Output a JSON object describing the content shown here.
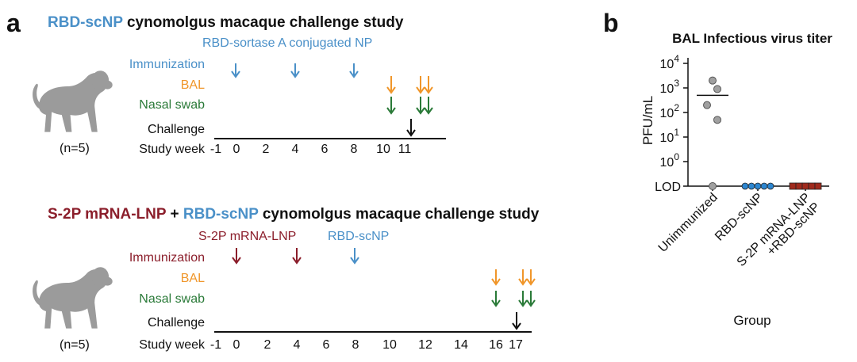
{
  "colors": {
    "blue": "#4a90c8",
    "maroon": "#8b1e2b",
    "orange": "#f0962a",
    "green": "#2a7a38",
    "black": "#111111",
    "monkey": "#9b9b9b",
    "grey_point": "#a0a0a0",
    "blue_point": "#2d86d0",
    "red_point": "#a02a1c"
  },
  "panel_a": {
    "letter": "a",
    "study1": {
      "title_part1": "RBD-scNP",
      "title_part2": " cynomolgus macaque challenge study",
      "vaccine_label": "RBD-sortase A conjugated NP",
      "row_labels": {
        "immunization": "Immunization",
        "bal": "BAL",
        "nasal": "Nasal swab",
        "challenge": "Challenge",
        "study_week": "Study week"
      },
      "n_label": "(n=5)",
      "weeks": [
        "-1",
        "0",
        "2",
        "4",
        "6",
        "8",
        "10",
        "11"
      ]
    },
    "study2": {
      "title_part1": "S-2P mRNA-LNP",
      "title_part2": " + ",
      "title_part3": "RBD-scNP",
      "title_part4": " cynomolgus macaque challenge study",
      "vaccine1_label": "S-2P mRNA-LNP",
      "vaccine2_label": "RBD-scNP",
      "row_labels": {
        "immunization": "Immunization",
        "bal": "BAL",
        "nasal": "Nasal swab",
        "challenge": "Challenge",
        "study_week": "Study week"
      },
      "n_label": "(n=5)",
      "weeks": [
        "-1",
        "0",
        "2",
        "4",
        "6",
        "8",
        "10",
        "12",
        "14",
        "16",
        "17"
      ]
    }
  },
  "panel_b": {
    "letter": "b",
    "chart_data": {
      "type": "scatter",
      "title": "BAL Infectious virus titer",
      "ylabel": "PFU/mL",
      "xlabel": "Group",
      "y_scale": "log",
      "ylim": [
        "LOD",
        10000
      ],
      "y_ticks": [
        "LOD",
        "10^0",
        "10^1",
        "10^2",
        "10^3",
        "10^4"
      ],
      "categories": [
        "Unimmunized",
        "RBD-scNP",
        "S-2P mRNA-LNP +RBD-scNP"
      ],
      "category_label_lines": [
        [
          "Unimmunized"
        ],
        [
          "RBD-scNP"
        ],
        [
          "S-2P mRNA-LNP",
          "+RBD-scNP"
        ]
      ],
      "series": [
        {
          "category": "Unimmunized",
          "values": [
            2000,
            900,
            200,
            50,
            "LOD"
          ],
          "mean": 500
        },
        {
          "category": "RBD-scNP",
          "values": [
            "LOD",
            "LOD",
            "LOD",
            "LOD",
            "LOD"
          ]
        },
        {
          "category": "S-2P mRNA-LNP +RBD-scNP",
          "values": [
            "LOD",
            "LOD",
            "LOD",
            "LOD",
            "LOD"
          ]
        }
      ]
    }
  }
}
